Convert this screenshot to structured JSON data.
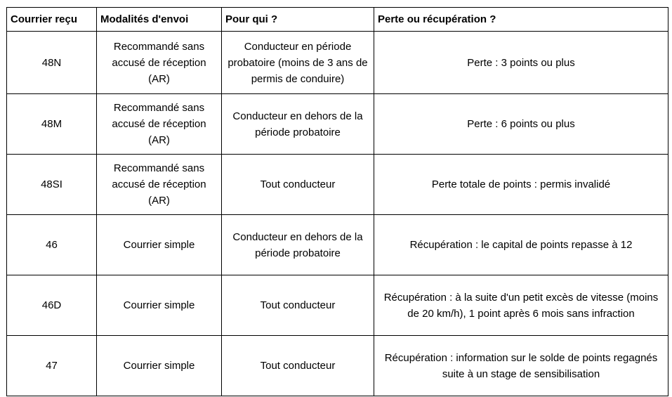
{
  "table": {
    "headers": [
      "Courrier reçu",
      "Modalités d'envoi",
      "Pour qui ?",
      "Perte ou récupération ?"
    ],
    "rows": [
      {
        "cells": [
          "48N",
          "Recommandé sans accusé de réception (AR)",
          "Conducteur en période probatoire (moins de 3 ans de permis de conduire)",
          "Perte : 3 points ou plus"
        ]
      },
      {
        "cells": [
          "48M",
          "Recommandé sans accusé de réception (AR)",
          "Conducteur en dehors de la période probatoire",
          "Perte : 6 points ou plus"
        ]
      },
      {
        "cells": [
          "48SI",
          "Recommandé sans accusé de réception (AR)",
          "Tout conducteur",
          "Perte totale de points : permis invalidé"
        ]
      },
      {
        "cells": [
          "46",
          "Courrier simple",
          "Conducteur en dehors de la période probatoire",
          "Récupération : le capital de points repasse à 12"
        ]
      },
      {
        "cells": [
          "46D",
          "Courrier simple",
          "Tout conducteur",
          "Récupération : à la suite d'un petit excès de vitesse (moins de 20 km/h), 1 point après 6 mois sans infraction"
        ]
      },
      {
        "cells": [
          "47",
          "Courrier simple",
          "Tout conducteur",
          "Récupération : information sur le solde de points regagnés suite à un stage de sensibilisation"
        ]
      }
    ]
  },
  "colors": {
    "border": "#000000",
    "text": "#000000",
    "background": "#ffffff"
  }
}
